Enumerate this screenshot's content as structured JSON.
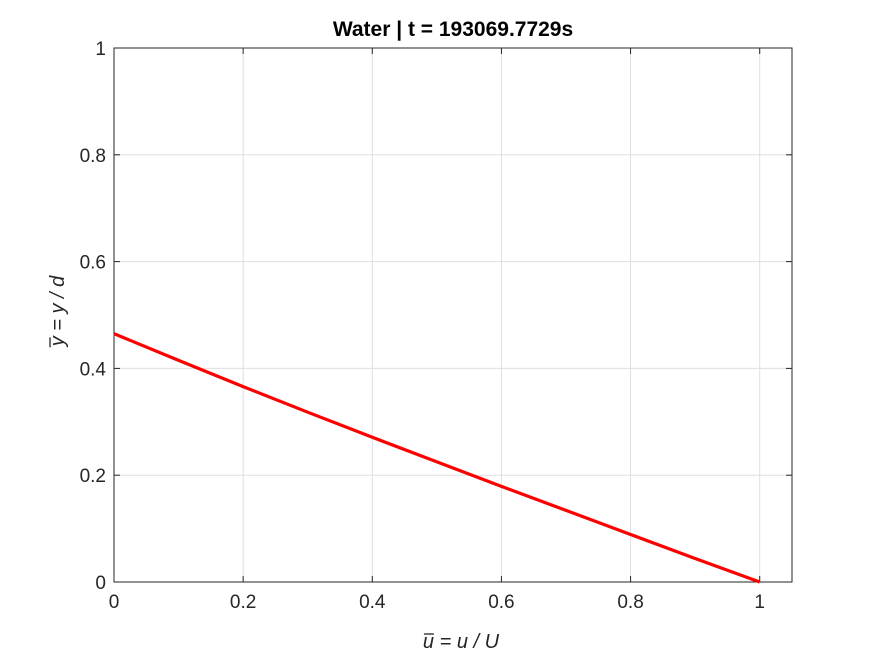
{
  "chart_data": {
    "type": "line",
    "title": "Water | t = 193069.7729s",
    "xlabel": "u = u / U",
    "ylabel": "y = y / d",
    "xlim": [
      0,
      1.05
    ],
    "ylim": [
      0,
      1
    ],
    "xticks": [
      "0",
      "0.2",
      "0.4",
      "0.6",
      "0.8",
      "1"
    ],
    "yticks": [
      "0",
      "0.2",
      "0.4",
      "0.6",
      "0.8",
      "1"
    ],
    "grid": true,
    "legend": "none",
    "series": [
      {
        "color": "#ff0000",
        "x": [
          0,
          0.1,
          0.2,
          0.3,
          0.4,
          0.5,
          0.6,
          0.7,
          0.8,
          0.9,
          1.0
        ],
        "y": [
          0.465,
          0.415,
          0.366,
          0.318,
          0.271,
          0.225,
          0.179,
          0.134,
          0.089,
          0.044,
          0.0
        ]
      }
    ]
  }
}
